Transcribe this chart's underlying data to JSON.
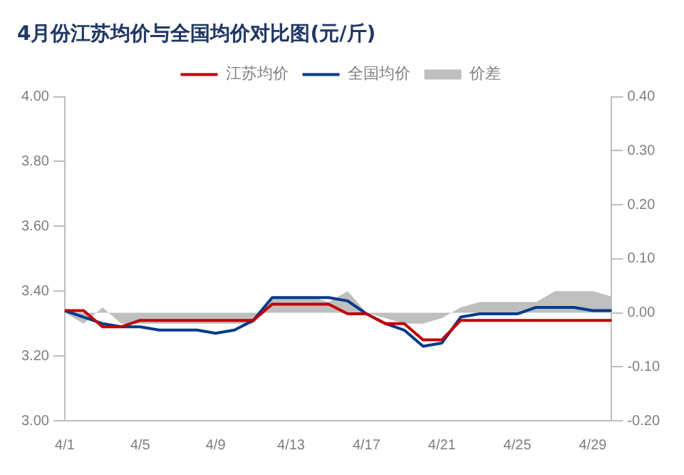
{
  "chart_data": {
    "type": "line",
    "title": "4月份江苏均价与全国均价对比图(元/斤)",
    "categories": [
      "4/1",
      null,
      null,
      null,
      "4/5",
      null,
      null,
      null,
      "4/9",
      null,
      null,
      null,
      "4/13",
      null,
      null,
      null,
      "4/17",
      null,
      null,
      null,
      "4/21",
      null,
      null,
      null,
      "4/25",
      null,
      null,
      null,
      "4/29",
      null
    ],
    "series": [
      {
        "name": "价差",
        "type": "area",
        "axis": "y2",
        "color": "#bfbfbf",
        "values": [
          0.0,
          -0.02,
          0.01,
          -0.02,
          -0.02,
          -0.02,
          -0.02,
          -0.02,
          -0.02,
          -0.02,
          -0.02,
          0.03,
          0.03,
          0.03,
          0.02,
          0.04,
          0.0,
          -0.01,
          -0.02,
          -0.02,
          -0.01,
          0.01,
          0.02,
          0.02,
          0.02,
          0.02,
          0.04,
          0.04,
          0.04,
          0.03
        ]
      },
      {
        "name": "江苏均价",
        "color": "#c00000",
        "values": [
          3.34,
          3.34,
          3.29,
          3.29,
          3.31,
          3.31,
          3.31,
          3.31,
          3.31,
          3.31,
          3.31,
          3.36,
          3.36,
          3.36,
          3.36,
          3.33,
          3.33,
          3.3,
          3.3,
          3.25,
          3.25,
          3.31,
          3.31,
          3.31,
          3.31,
          3.31,
          3.31,
          3.31,
          3.31,
          3.31
        ]
      },
      {
        "name": "全国均价",
        "color": "#003a8c",
        "values": [
          3.34,
          3.32,
          3.3,
          3.29,
          3.29,
          3.28,
          3.28,
          3.28,
          3.27,
          3.28,
          3.31,
          3.38,
          3.38,
          3.38,
          3.38,
          3.37,
          3.33,
          3.3,
          3.28,
          3.23,
          3.24,
          3.32,
          3.33,
          3.33,
          3.33,
          3.35,
          3.35,
          3.35,
          3.34,
          3.34
        ]
      }
    ],
    "ylim": [
      3.0,
      4.0
    ],
    "yticks": [
      {
        "value": 3.0,
        "label": "3.00"
      },
      {
        "value": 3.2,
        "label": "3.20"
      },
      {
        "value": 3.4,
        "label": "3.40"
      },
      {
        "value": 3.6,
        "label": "3.60"
      },
      {
        "value": 3.8,
        "label": "3.80"
      },
      {
        "value": 4.0,
        "label": "4.00"
      }
    ],
    "y2lim": [
      -0.2,
      0.4
    ],
    "y2ticks": [
      {
        "value": -0.2,
        "label": "-0.20"
      },
      {
        "value": -0.1,
        "label": "-0.10"
      },
      {
        "value": 0,
        "label": "0.00"
      },
      {
        "value": 0.1,
        "label": "0.10"
      },
      {
        "value": 0.2,
        "label": "0.20"
      },
      {
        "value": 0.3,
        "label": "0.30"
      },
      {
        "value": 0.4,
        "label": "0.40"
      }
    ],
    "grid": false,
    "legend": "top",
    "marker": "none",
    "line_style": "solid"
  }
}
